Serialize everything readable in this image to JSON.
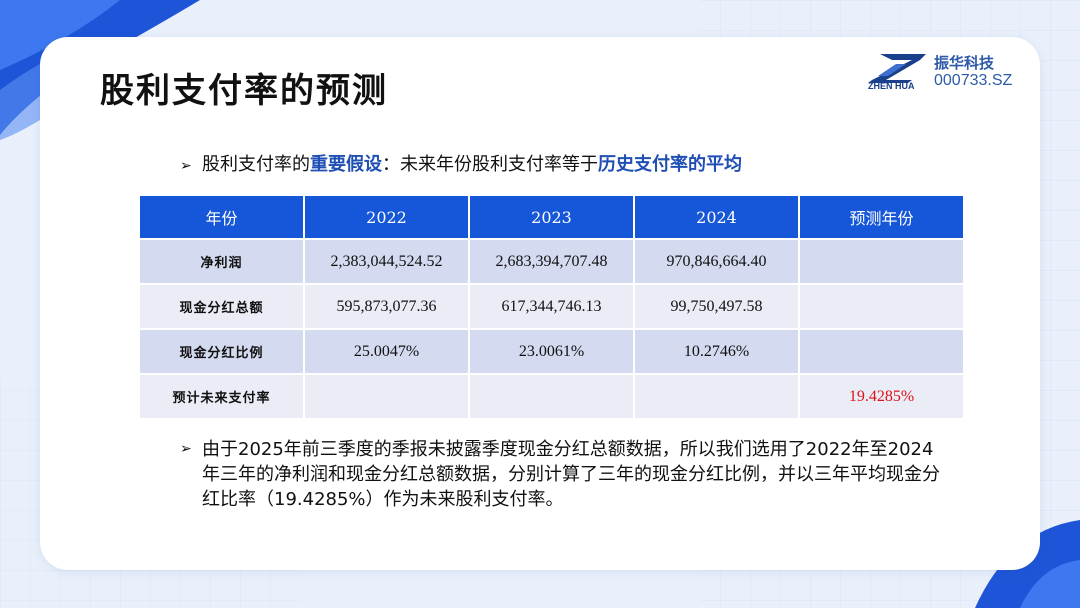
{
  "slide": {
    "title": "股利支付率的预测",
    "bullet_marker": "➢"
  },
  "logo": {
    "name_cn": "振华科技",
    "stock_code": "000733.SZ",
    "name_en": "ZHEN HUA"
  },
  "assumption": {
    "prefix": "股利支付率的",
    "emphasis1": "重要假设",
    "middle": "：未来年份股利支付率等于",
    "emphasis2": "历史支付率的平均"
  },
  "table": {
    "headers": [
      "年份",
      "2022",
      "2023",
      "2024",
      "预测年份"
    ],
    "rows": [
      {
        "label": "净利润",
        "cells": [
          "2,383,044,524.52",
          "2,683,394,707.48",
          "970,846,664.40",
          ""
        ]
      },
      {
        "label": "现金分红总额",
        "cells": [
          "595,873,077.36",
          "617,344,746.13",
          "99,750,497.58",
          ""
        ]
      },
      {
        "label": "现金分红比例",
        "cells": [
          "25.0047%",
          "23.0061%",
          "10.2746%",
          ""
        ]
      },
      {
        "label": "预计未来支付率",
        "cells": [
          "",
          "",
          "",
          "19.4285%"
        ]
      }
    ]
  },
  "note": {
    "text": "由于2025年前三季度的季报未披露季度现金分红总额数据，所以我们选用了2022年至2024年三年的净利润和现金分红总额数据，分别计算了三年的现金分红比例，并以三年平均现金分红比率（19.4285%）作为未来股利支付率。"
  },
  "colors": {
    "header_blue": "#1656d8",
    "highlight_blue": "#1f4fb4",
    "forecast_red": "#e0101a",
    "row_dark": "#d4daf0",
    "row_light": "#eaedf6"
  }
}
